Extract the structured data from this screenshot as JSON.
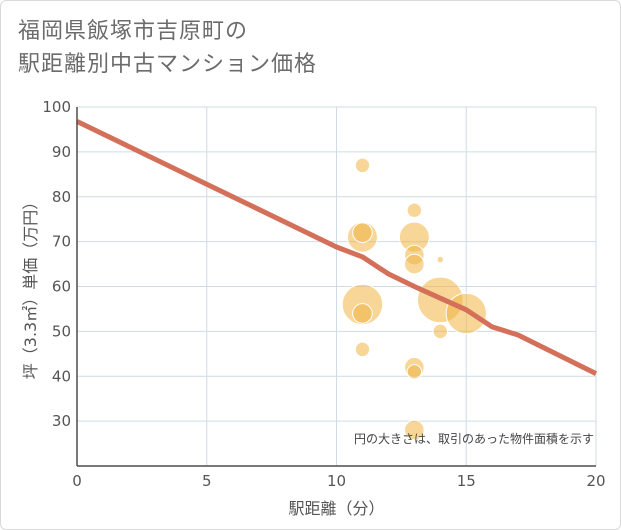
{
  "title_line1": "福岡県飯塚市吉原町の",
  "title_line2": "駅距離別中古マンション価格",
  "chart_data": {
    "type": "scatter",
    "title": "福岡県飯塚市吉原町の駅距離別中古マンション価格",
    "xlabel": "駅距離（分）",
    "ylabel": "坪（3.3㎡）単価（万円）",
    "xlim": [
      0,
      20
    ],
    "ylim": [
      20,
      100
    ],
    "xticks": [
      0,
      5,
      10,
      15,
      20
    ],
    "yticks": [
      30,
      40,
      50,
      60,
      70,
      80,
      90,
      100
    ],
    "grid": true,
    "note": "円の大きさは、取引のあった物件面積を示す",
    "colors": {
      "bubble": "#f0b443",
      "trend": "#d4705a",
      "grid": "#cfdce6",
      "axis": "#4d4d4d"
    },
    "points": [
      {
        "x": 11,
        "y": 87,
        "size": 2
      },
      {
        "x": 11,
        "y": 72,
        "size": 3
      },
      {
        "x": 11,
        "y": 71,
        "size": 5
      },
      {
        "x": 11,
        "y": 56,
        "size": 7
      },
      {
        "x": 11,
        "y": 54,
        "size": 3
      },
      {
        "x": 11,
        "y": 46,
        "size": 2
      },
      {
        "x": 13,
        "y": 77,
        "size": 2
      },
      {
        "x": 13,
        "y": 71,
        "size": 5
      },
      {
        "x": 13,
        "y": 67,
        "size": 3
      },
      {
        "x": 13,
        "y": 65,
        "size": 3
      },
      {
        "x": 13,
        "y": 42,
        "size": 3
      },
      {
        "x": 13,
        "y": 41,
        "size": 2
      },
      {
        "x": 13,
        "y": 28,
        "size": 3
      },
      {
        "x": 14,
        "y": 66,
        "size": 0.5
      },
      {
        "x": 14,
        "y": 57,
        "size": 8
      },
      {
        "x": 14,
        "y": 50,
        "size": 2
      },
      {
        "x": 15,
        "y": 54,
        "size": 7
      }
    ],
    "trend": [
      {
        "x": 0,
        "y": 96.8
      },
      {
        "x": 5,
        "y": 82.8
      },
      {
        "x": 10,
        "y": 68.8
      },
      {
        "x": 11,
        "y": 66.6
      },
      {
        "x": 12,
        "y": 62.8
      },
      {
        "x": 13,
        "y": 60.0
      },
      {
        "x": 14,
        "y": 57.4
      },
      {
        "x": 15,
        "y": 54.8
      },
      {
        "x": 16,
        "y": 51.0
      },
      {
        "x": 17,
        "y": 49.2
      },
      {
        "x": 20,
        "y": 40.6
      }
    ]
  }
}
